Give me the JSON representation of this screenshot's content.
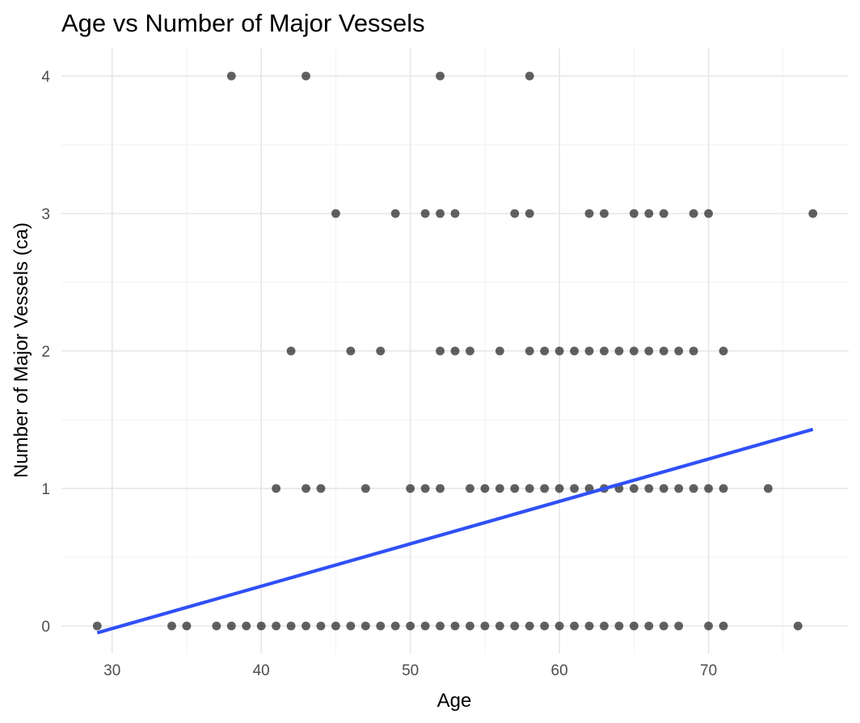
{
  "chart_data": {
    "type": "scatter",
    "title": "Age vs Number of Major Vessels",
    "xlabel": "Age",
    "ylabel": "Number of Major Vessels (ca)",
    "xlim": [
      26.6,
      79.4
    ],
    "ylim": [
      -0.2,
      4.2
    ],
    "xticks": [
      30,
      40,
      50,
      60,
      70
    ],
    "yticks": [
      0,
      1,
      2,
      3,
      4
    ],
    "grid": true,
    "legend": "none",
    "series": [
      {
        "points": [
          [
            29,
            0
          ],
          [
            34,
            0
          ],
          [
            35,
            0
          ],
          [
            37,
            0
          ],
          [
            38,
            0
          ],
          [
            39,
            0
          ],
          [
            40,
            0
          ],
          [
            41,
            0
          ],
          [
            42,
            0
          ],
          [
            43,
            0
          ],
          [
            44,
            0
          ],
          [
            45,
            0
          ],
          [
            46,
            0
          ],
          [
            47,
            0
          ],
          [
            48,
            0
          ],
          [
            49,
            0
          ],
          [
            50,
            0
          ],
          [
            51,
            0
          ],
          [
            52,
            0
          ],
          [
            53,
            0
          ],
          [
            54,
            0
          ],
          [
            55,
            0
          ],
          [
            56,
            0
          ],
          [
            57,
            0
          ],
          [
            58,
            0
          ],
          [
            59,
            0
          ],
          [
            60,
            0
          ],
          [
            61,
            0
          ],
          [
            62,
            0
          ],
          [
            63,
            0
          ],
          [
            64,
            0
          ],
          [
            65,
            0
          ],
          [
            66,
            0
          ],
          [
            67,
            0
          ],
          [
            68,
            0
          ],
          [
            70,
            0
          ],
          [
            71,
            0
          ],
          [
            76,
            0
          ],
          [
            41,
            1
          ],
          [
            43,
            1
          ],
          [
            44,
            1
          ],
          [
            47,
            1
          ],
          [
            50,
            1
          ],
          [
            51,
            1
          ],
          [
            52,
            1
          ],
          [
            54,
            1
          ],
          [
            55,
            1
          ],
          [
            56,
            1
          ],
          [
            57,
            1
          ],
          [
            58,
            1
          ],
          [
            59,
            1
          ],
          [
            60,
            1
          ],
          [
            61,
            1
          ],
          [
            62,
            1
          ],
          [
            63,
            1
          ],
          [
            64,
            1
          ],
          [
            65,
            1
          ],
          [
            66,
            1
          ],
          [
            67,
            1
          ],
          [
            68,
            1
          ],
          [
            69,
            1
          ],
          [
            70,
            1
          ],
          [
            71,
            1
          ],
          [
            74,
            1
          ],
          [
            42,
            2
          ],
          [
            46,
            2
          ],
          [
            48,
            2
          ],
          [
            52,
            2
          ],
          [
            53,
            2
          ],
          [
            54,
            2
          ],
          [
            56,
            2
          ],
          [
            58,
            2
          ],
          [
            59,
            2
          ],
          [
            60,
            2
          ],
          [
            61,
            2
          ],
          [
            62,
            2
          ],
          [
            63,
            2
          ],
          [
            64,
            2
          ],
          [
            65,
            2
          ],
          [
            66,
            2
          ],
          [
            67,
            2
          ],
          [
            68,
            2
          ],
          [
            69,
            2
          ],
          [
            71,
            2
          ],
          [
            45,
            3
          ],
          [
            49,
            3
          ],
          [
            51,
            3
          ],
          [
            52,
            3
          ],
          [
            53,
            3
          ],
          [
            57,
            3
          ],
          [
            58,
            3
          ],
          [
            62,
            3
          ],
          [
            63,
            3
          ],
          [
            65,
            3
          ],
          [
            66,
            3
          ],
          [
            67,
            3
          ],
          [
            69,
            3
          ],
          [
            70,
            3
          ],
          [
            77,
            3
          ],
          [
            38,
            4
          ],
          [
            43,
            4
          ],
          [
            52,
            4
          ],
          [
            58,
            4
          ]
        ],
        "dark_points": [
          [
            34,
            0
          ],
          [
            35,
            0
          ],
          [
            37,
            0
          ],
          [
            39,
            0
          ],
          [
            40,
            0
          ],
          [
            41,
            0
          ],
          [
            42,
            0
          ],
          [
            43,
            0
          ],
          [
            44,
            0
          ],
          [
            45,
            0
          ],
          [
            46,
            0
          ],
          [
            47,
            0
          ],
          [
            48,
            0
          ],
          [
            49,
            0
          ],
          [
            50,
            0
          ],
          [
            51,
            0
          ],
          [
            52,
            0
          ],
          [
            53,
            0
          ],
          [
            54,
            0
          ],
          [
            55,
            0
          ],
          [
            56,
            0
          ],
          [
            57,
            0
          ],
          [
            58,
            0
          ],
          [
            59,
            0
          ],
          [
            60,
            0
          ],
          [
            61,
            0
          ],
          [
            62,
            0
          ],
          [
            63,
            0
          ],
          [
            64,
            0
          ],
          [
            65,
            0
          ],
          [
            66,
            0
          ],
          [
            67,
            0
          ],
          [
            68,
            0
          ],
          [
            70,
            0
          ],
          [
            44,
            1
          ],
          [
            51,
            1
          ],
          [
            52,
            1
          ],
          [
            54,
            1
          ],
          [
            55,
            1
          ],
          [
            56,
            1
          ],
          [
            57,
            1
          ],
          [
            58,
            1
          ],
          [
            59,
            1
          ],
          [
            60,
            1
          ],
          [
            61,
            1
          ],
          [
            64,
            1
          ],
          [
            65,
            1
          ],
          [
            48,
            2
          ],
          [
            56,
            2
          ],
          [
            58,
            2
          ],
          [
            59,
            2
          ],
          [
            60,
            2
          ],
          [
            62,
            2
          ],
          [
            63,
            2
          ],
          [
            64,
            2
          ],
          [
            67,
            2
          ],
          [
            49,
            3
          ],
          [
            58,
            3
          ],
          [
            62,
            3
          ],
          [
            63,
            3
          ],
          [
            38,
            4
          ]
        ],
        "color": "#000000"
      }
    ],
    "trend_line": {
      "x": [
        29,
        77
      ],
      "y": [
        -0.05,
        1.43
      ],
      "color": "#3050f8"
    }
  }
}
